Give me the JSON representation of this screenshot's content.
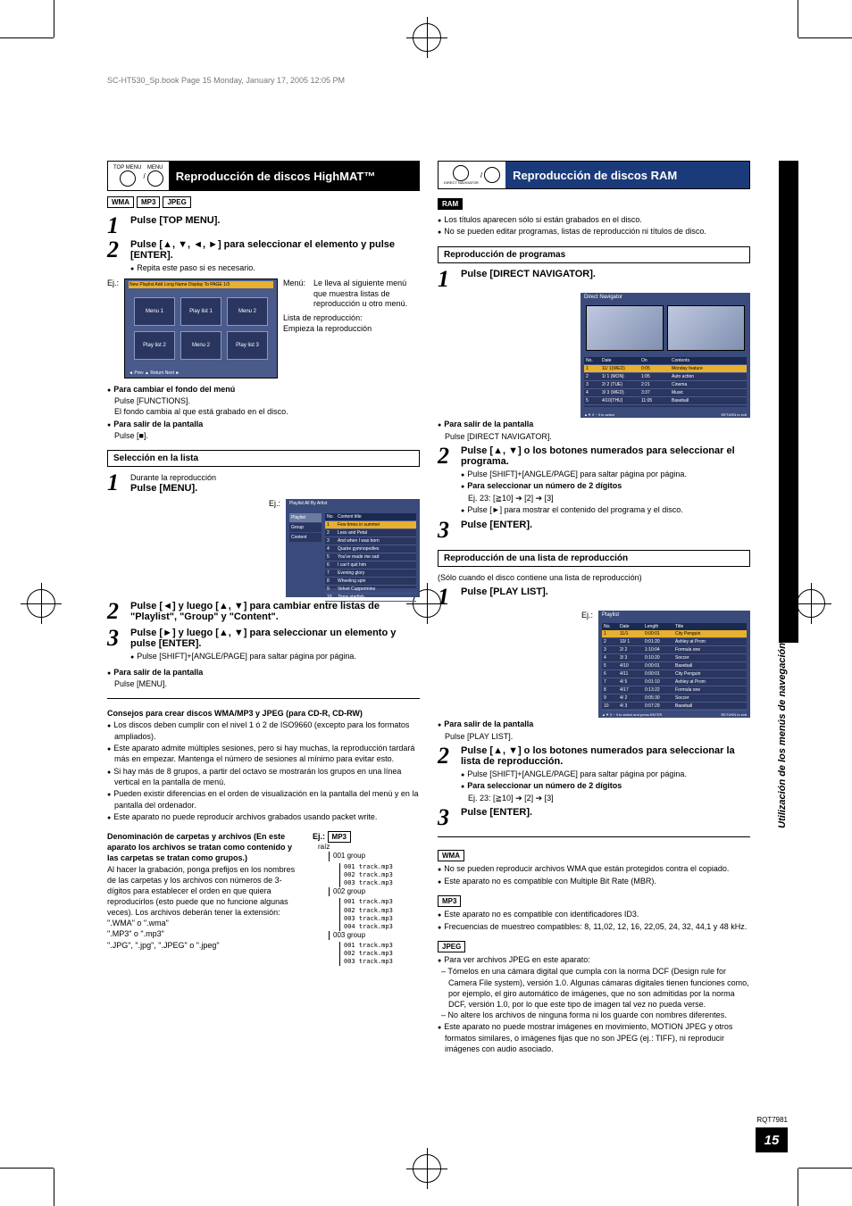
{
  "book_info": "SC-HT530_Sp.book  Page 15  Monday, January 17, 2005  12:05 PM",
  "side_label": "Utilización de los menús de navegación",
  "doc_id": "RQT7981",
  "page_number": "15",
  "left": {
    "header_icons": [
      "TOP MENU",
      "MENU"
    ],
    "header_title": "Reproducción de discos HighMAT™",
    "format_tags": [
      "WMA",
      "MP3",
      "JPEG"
    ],
    "step1": "Pulse [TOP MENU].",
    "step2_head": "Pulse [▲, ▼, ◄, ►] para seleccionar el elemento y pulse [ENTER].",
    "step2_note": "Repita este paso si es necesario.",
    "ej": "Ej.:",
    "menu_items": [
      "Menu 1",
      "Play list 1",
      "Menu 2",
      "Play list 2",
      "Menu 2",
      "Play list 3"
    ],
    "menu_top_bar": "New Playlist Add   Long Name Display To   PAGE 1/3",
    "menu_bottom_bar": "◄ Prev            ▲ Return            Next ►",
    "menu_desc_1_label": "Menú:",
    "menu_desc_1_text": "Le lleva al siguiente menú que muestra listas de reproducción u otro menú.",
    "menu_desc_2_label": "Lista de reproducción:",
    "menu_desc_2_text": "Empieza la reproducción",
    "change_bg_head": "Para cambiar el fondo del menú",
    "change_bg_1": "Pulse [FUNCTIONS].",
    "change_bg_2": "El fondo cambia al que está grabado en el disco.",
    "exit_head": "Para salir de la pantalla",
    "exit_text": "Pulse [■].",
    "sel_section": "Selección en la lista",
    "sel_step1_pre": "Durante la reproducción",
    "sel_step1": "Pulse [MENU].",
    "playlist_title": "Playlist                    All By Artist",
    "playlist_tabs": [
      "Playlist",
      "Group",
      "Content"
    ],
    "playlist_header": [
      "No.",
      "Content title"
    ],
    "playlist_rows_src": [
      [
        "1",
        "Few times in summer"
      ],
      [
        "2",
        "Less and Petal"
      ],
      [
        "3",
        "And when I was born"
      ],
      [
        "4",
        "Quatre gymnopedies"
      ],
      [
        "5",
        "You've made me sad"
      ],
      [
        "6",
        "I can't quit him"
      ],
      [
        "7",
        "Evening glory"
      ],
      [
        "8",
        "Wheeling spin"
      ],
      [
        "9",
        "Velvet Cuppermine"
      ],
      [
        "10",
        "Ziggy starfish"
      ]
    ],
    "sel_step2": "Pulse [◄] y luego [▲, ▼] para cambiar entre listas de \"Playlist\", \"Group\" y \"Content\".",
    "sel_step3_head": "Pulse [►] y luego [▲, ▼] para seleccionar un elemento y pulse [ENTER].",
    "sel_step3_note": "Pulse [SHIFT]+[ANGLE/PAGE] para saltar página por página.",
    "sel_exit_head": "Para salir de la pantalla",
    "sel_exit_text": "Pulse [MENU].",
    "tips_title": "Consejos para crear discos WMA/MP3 y JPEG (para CD-R, CD-RW)",
    "tips": [
      "Los discos deben cumplir con el nivel 1 ó 2 de ISO9660 (excepto para los formatos ampliados).",
      "Este aparato admite múltiples sesiones, pero si hay muchas, la reproducción tardará más en empezar. Mantenga el número de sesiones al mínimo para evitar esto.",
      "Si hay más de 8 grupos, a partir del octavo se mostrarán los grupos en una línea vertical en la pantalla de menú.",
      "Pueden existir diferencias en el orden de visualización en la pantalla del menú y en la pantalla del ordenador.",
      "Este aparato no puede reproducir archivos grabados usando packet write."
    ],
    "naming_title": "Denominación de carpetas y archivos (En este aparato los archivos se tratan como contenido y las carpetas se tratan como grupos.)",
    "naming_body": "Al hacer la grabación, ponga prefijos en los nombres de las carpetas y los archivos con números de 3-dígitos para establecer el orden en que quiera reproducirlos (esto puede que no funcione algunas veces). Los archivos deberán tener la extensión:",
    "ext1": "\".WMA\" o \".wma\"",
    "ext2": "\".MP3\" o \".mp3\"",
    "ext3": "\".JPG\", \".jpg\", \".JPEG\" o \".jpeg\"",
    "tree_ej": "Ej.:",
    "tree_tag": "MP3",
    "tree_root": "raíz",
    "tree": {
      "g1": "001 group",
      "g1_files": [
        "001 track.mp3",
        "002 track.mp3",
        "003 track.mp3"
      ],
      "g2": "002 group",
      "g2_files": [
        "001 track.mp3",
        "002 track.mp3",
        "003 track.mp3",
        "004 track.mp3"
      ],
      "g3": "003 group",
      "g3_files": [
        "001 track.mp3",
        "002 track.mp3",
        "003 track.mp3"
      ]
    }
  },
  "right": {
    "header_icons": [
      "DIRECT NAVIGATOR",
      "PLAY LIST"
    ],
    "header_title": "Reproducción de discos RAM",
    "ram_tag": "RAM",
    "intro": [
      "Los títulos aparecen sólo si están grabados en el disco.",
      "No se pueden editar programas, listas de reproducción ni títulos de disco."
    ],
    "prog_section": "Reproducción de programas",
    "prog_step1": "Pulse [DIRECT NAVIGATOR].",
    "ej": "Ej.:",
    "nav_title": "Direct Navigator",
    "nav_header": [
      "No.",
      "Date",
      "On",
      "Contents"
    ],
    "nav_rows": [
      [
        "1",
        "11/ 1(WED)",
        "0:05",
        "Monday feature"
      ],
      [
        "2",
        "1/ 1 (MON)",
        "1:05",
        "Auto action"
      ],
      [
        "3",
        "2/ 2 (TUE)",
        "2:21",
        "Cinema"
      ],
      [
        "4",
        "3/ 3 (WED)",
        "3:37",
        "Music"
      ],
      [
        "5",
        "4/10(THU)",
        "11:05",
        "Baseball"
      ]
    ],
    "nav_footer_l": "▲▼ 0 ~ 9 to select",
    "nav_footer_r": "RETURN to exit",
    "prog_exit_head": "Para salir de la pantalla",
    "prog_exit_text": "Pulse [DIRECT NAVIGATOR].",
    "prog_step2_head": "Pulse [▲, ▼] o los botones numerados para seleccionar el programa.",
    "prog_step2_n1": "Pulse [SHIFT]+[ANGLE/PAGE] para saltar página por página.",
    "prog_step2_n2_head": "Para seleccionar un número de 2 dígitos",
    "prog_step2_n2": "Ej. 23: [≧10] ➔ [2] ➔ [3]",
    "prog_step2_n3": "Pulse [►] para mostrar el contenido del programa y el disco.",
    "prog_step3": "Pulse [ENTER].",
    "pl_section": "Reproducción de una lista de reproducción",
    "pl_note": "(Sólo cuando el disco contiene una lista de reproducción)",
    "pl_step1": "Pulse [PLAY LIST].",
    "pl_title": "Playlist",
    "pl_header": [
      "No.",
      "Date",
      "Length",
      "Title"
    ],
    "pl_rows": [
      [
        "1",
        "11/1",
        "0:00:01",
        "City Penguin"
      ],
      [
        "2",
        "10/ 1",
        "0:01:20",
        "Ashley at Prom"
      ],
      [
        "3",
        "2/ 2",
        "1:10:04",
        "Formula one"
      ],
      [
        "4",
        "3/ 3",
        "0:10:20",
        "Soccer"
      ],
      [
        "5",
        "4/10",
        "0:00:01",
        "Baseball"
      ],
      [
        "6",
        "4/11",
        "0:00:01",
        "City Penguin"
      ],
      [
        "7",
        "4/ 5",
        "0:01:10",
        "Ashley at Prom"
      ],
      [
        "8",
        "4/17",
        "0:13:22",
        "Formula one"
      ],
      [
        "9",
        "4/ 2",
        "0:05:30",
        "Soccer"
      ],
      [
        "10",
        "4/ 3",
        "0:07:29",
        "Baseball"
      ]
    ],
    "pl_footer_l": "▲▼ 0 ~ 9 to select and press ENTER",
    "pl_footer_r": "RETURN to exit",
    "pl_exit_head": "Para salir de la pantalla",
    "pl_exit_text": "Pulse [PLAY LIST].",
    "pl_step2_head": "Pulse [▲, ▼] o los botones numerados para seleccionar la lista de reproducción.",
    "pl_step2_n1": "Pulse [SHIFT]+[ANGLE/PAGE] para saltar página por página.",
    "pl_step2_n2_head": "Para seleccionar un número de 2 dígitos",
    "pl_step2_n2": "Ej. 23: [≧10] ➔ [2] ➔ [3]",
    "pl_step3": "Pulse [ENTER].",
    "wma_tag": "WMA",
    "wma_notes": [
      "No se pueden reproducir archivos WMA que están protegidos contra el copiado.",
      "Este aparato no es compatible con Multiple Bit Rate (MBR)."
    ],
    "mp3_tag": "MP3",
    "mp3_notes": [
      "Este aparato no es compatible con identificadores ID3.",
      "Frecuencias de muestreo compatibles: 8, 11,02, 12, 16, 22,05, 24, 32, 44,1 y 48 kHz."
    ],
    "jpeg_tag": "JPEG",
    "jpeg_note_head": "Para ver archivos JPEG en este aparato:",
    "jpeg_dash": [
      "Tómelos en una cámara digital que cumpla con la norma DCF (Design rule for Camera File system), versión 1.0. Algunas cámaras digitales tienen funciones como, por ejemplo, el giro automático de imágenes, que no son admitidas por la norma DCF, versión 1.0, por lo que este tipo de imagen tal vez no pueda verse.",
      "No altere los archivos de ninguna forma ni los guarde con nombres diferentes."
    ],
    "jpeg_note2": "Este aparato no puede mostrar imágenes en movimiento, MOTION JPEG y otros formatos similares, o imágenes fijas que no son JPEG (ej.: TIFF), ni reproducir imágenes con audio asociado."
  }
}
